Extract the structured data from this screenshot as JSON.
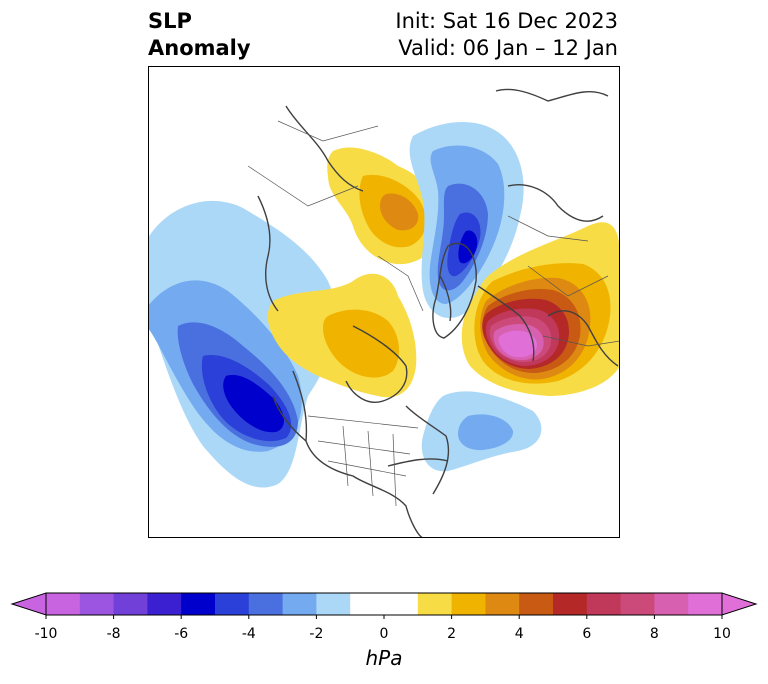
{
  "title": {
    "line1": "SLP",
    "line2": "Anomaly"
  },
  "init": {
    "line1": "Init: Sat 16 Dec 2023",
    "line2": "Valid: 06 Jan – 12 Jan"
  },
  "colorbar": {
    "units": "hPa",
    "ticks": [
      "-10",
      "-8",
      "-6",
      "-4",
      "-2",
      "0",
      "2",
      "4",
      "6",
      "8",
      "10"
    ],
    "colors": [
      "#c864e0",
      "#9b55e0",
      "#7040d8",
      "#3a20d0",
      "#0000cc",
      "#2b40d8",
      "#4a70e0",
      "#74aaf0",
      "#acd8f8",
      "#ffffff",
      "#ffffff",
      "#f8dc46",
      "#f0b400",
      "#de8a12",
      "#c85a14",
      "#b42828",
      "#c0385a",
      "#cc4a7a",
      "#d860b0",
      "#e070d8"
    ]
  },
  "map": {
    "anomaly_centers": [
      {
        "name": "north-pacific-low",
        "value": -7
      },
      {
        "name": "greenland-sea-low",
        "value": -7
      },
      {
        "name": "scandinavia-high",
        "value": 9
      },
      {
        "name": "siberia-high",
        "value": 4
      },
      {
        "name": "canada-high",
        "value": 3
      },
      {
        "name": "north-atlantic-low",
        "value": -3
      }
    ]
  }
}
